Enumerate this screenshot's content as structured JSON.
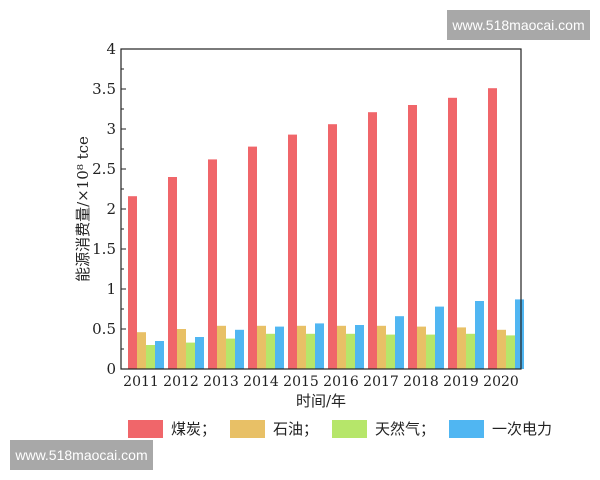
{
  "watermarks": {
    "top": "www.518maocai.com",
    "bottom": "www.518maocai.com"
  },
  "chart_data": {
    "type": "bar",
    "title": "",
    "xlabel": "时间/年",
    "ylabel": "能源消费量/×10⁸ tce",
    "ylim": [
      0,
      4
    ],
    "yticks": [
      "0",
      "0.5",
      "1",
      "1.5",
      "2",
      "2.5",
      "3",
      "3.5",
      "4"
    ],
    "categories": [
      "2011",
      "2012",
      "2013",
      "2014",
      "2015",
      "2016",
      "2017",
      "2018",
      "2019",
      "2020"
    ],
    "series": [
      {
        "name": "煤炭",
        "legend_label": "煤炭；",
        "color": "#f0666a",
        "values": [
          2.16,
          2.4,
          2.62,
          2.78,
          2.93,
          3.06,
          3.21,
          3.3,
          3.39,
          3.51
        ]
      },
      {
        "name": "石油",
        "legend_label": "石油；",
        "color": "#e8c066",
        "values": [
          0.46,
          0.5,
          0.54,
          0.54,
          0.54,
          0.54,
          0.54,
          0.53,
          0.52,
          0.49
        ]
      },
      {
        "name": "天然气",
        "legend_label": "天然气；",
        "color": "#b6e66a",
        "values": [
          0.3,
          0.33,
          0.38,
          0.44,
          0.44,
          0.44,
          0.43,
          0.43,
          0.44,
          0.42
        ]
      },
      {
        "name": "一次电力",
        "legend_label": "一次电力",
        "color": "#50b6f2",
        "values": [
          0.35,
          0.4,
          0.49,
          0.53,
          0.57,
          0.55,
          0.66,
          0.78,
          0.85,
          0.87
        ]
      }
    ],
    "grid": false,
    "legend_position": "bottom"
  }
}
